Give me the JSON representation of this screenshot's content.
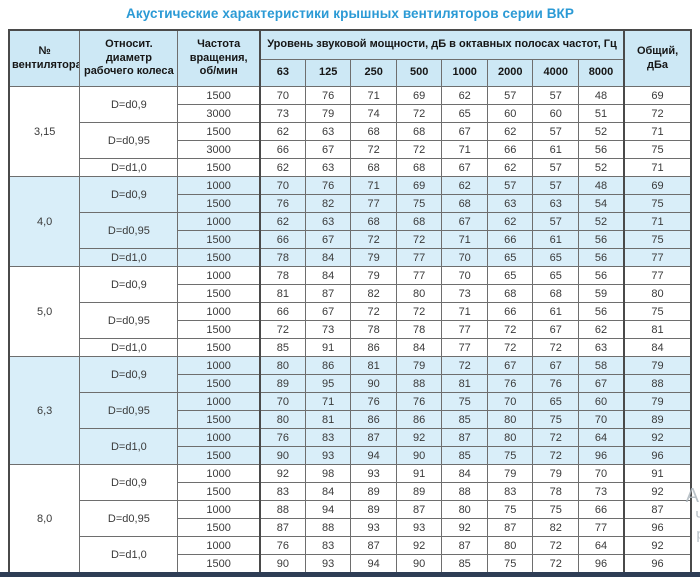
{
  "title": "Акустические характеристики крышных вентиляторов серии ВКР",
  "colors": {
    "title_blue": "#2b9ad5",
    "header_bg": "#cde8f5",
    "band_bg": "#d9eef9",
    "border": "#6e6e6e",
    "outer_border": "#4a4a4a",
    "bottom_bar": "#2e3d55"
  },
  "watermark": {
    "lines": [
      "Ан",
      "Чт",
      "ра"
    ]
  },
  "table": {
    "headers": {
      "fan_no": "№ вентилятора",
      "diameter": "Относит. диаметр рабочего колеса",
      "speed": "Частота вращения, об/мин",
      "spl_group": "Уровень звуковой мощности, дБ в октавных полосах частот, Гц",
      "frequencies": [
        "63",
        "125",
        "250",
        "500",
        "1000",
        "2000",
        "4000",
        "8000"
      ],
      "total": "Общий, дБа"
    },
    "groups": [
      {
        "fan": "3,15",
        "shaded": false,
        "diameters": [
          {
            "label": "D=d0,9",
            "rows": [
              {
                "speed": "1500",
                "values": [
                  70,
                  76,
                  71,
                  69,
                  62,
                  57,
                  57,
                  48
                ],
                "total": 69
              },
              {
                "speed": "3000",
                "values": [
                  73,
                  79,
                  74,
                  72,
                  65,
                  60,
                  60,
                  51
                ],
                "total": 72
              }
            ]
          },
          {
            "label": "D=d0,95",
            "rows": [
              {
                "speed": "1500",
                "values": [
                  62,
                  63,
                  68,
                  68,
                  67,
                  62,
                  57,
                  52
                ],
                "total": 71
              },
              {
                "speed": "3000",
                "values": [
                  66,
                  67,
                  72,
                  72,
                  71,
                  66,
                  61,
                  56
                ],
                "total": 75
              }
            ]
          },
          {
            "label": "D=d1,0",
            "rows": [
              {
                "speed": "1500",
                "values": [
                  62,
                  63,
                  68,
                  68,
                  67,
                  62,
                  57,
                  52
                ],
                "total": 71
              }
            ]
          }
        ]
      },
      {
        "fan": "4,0",
        "shaded": true,
        "diameters": [
          {
            "label": "D=d0,9",
            "rows": [
              {
                "speed": "1000",
                "values": [
                  70,
                  76,
                  71,
                  69,
                  62,
                  57,
                  57,
                  48
                ],
                "total": 69
              },
              {
                "speed": "1500",
                "values": [
                  76,
                  82,
                  77,
                  75,
                  68,
                  63,
                  63,
                  54
                ],
                "total": 75
              }
            ]
          },
          {
            "label": "D=d0,95",
            "rows": [
              {
                "speed": "1000",
                "values": [
                  62,
                  63,
                  68,
                  68,
                  67,
                  62,
                  57,
                  52
                ],
                "total": 71
              },
              {
                "speed": "1500",
                "values": [
                  66,
                  67,
                  72,
                  72,
                  71,
                  66,
                  61,
                  56
                ],
                "total": 75
              }
            ]
          },
          {
            "label": "D=d1,0",
            "rows": [
              {
                "speed": "1500",
                "values": [
                  78,
                  84,
                  79,
                  77,
                  70,
                  65,
                  65,
                  56
                ],
                "total": 77
              }
            ]
          }
        ]
      },
      {
        "fan": "5,0",
        "shaded": false,
        "diameters": [
          {
            "label": "D=d0,9",
            "rows": [
              {
                "speed": "1000",
                "values": [
                  78,
                  84,
                  79,
                  77,
                  70,
                  65,
                  65,
                  56
                ],
                "total": 77
              },
              {
                "speed": "1500",
                "values": [
                  81,
                  87,
                  82,
                  80,
                  73,
                  68,
                  68,
                  59
                ],
                "total": 80
              }
            ]
          },
          {
            "label": "D=d0,95",
            "rows": [
              {
                "speed": "1000",
                "values": [
                  66,
                  67,
                  72,
                  72,
                  71,
                  66,
                  61,
                  56
                ],
                "total": 75
              },
              {
                "speed": "1500",
                "values": [
                  72,
                  73,
                  78,
                  78,
                  77,
                  72,
                  67,
                  62
                ],
                "total": 81
              }
            ]
          },
          {
            "label": "D=d1,0",
            "rows": [
              {
                "speed": "1500",
                "values": [
                  85,
                  91,
                  86,
                  84,
                  77,
                  72,
                  72,
                  63
                ],
                "total": 84
              }
            ]
          }
        ]
      },
      {
        "fan": "6,3",
        "shaded": true,
        "diameters": [
          {
            "label": "D=d0,9",
            "rows": [
              {
                "speed": "1000",
                "values": [
                  80,
                  86,
                  81,
                  79,
                  72,
                  67,
                  67,
                  58
                ],
                "total": 79
              },
              {
                "speed": "1500",
                "values": [
                  89,
                  95,
                  90,
                  88,
                  81,
                  76,
                  76,
                  67
                ],
                "total": 88
              }
            ]
          },
          {
            "label": "D=d0,95",
            "rows": [
              {
                "speed": "1000",
                "values": [
                  70,
                  71,
                  76,
                  76,
                  75,
                  70,
                  65,
                  60
                ],
                "total": 79
              },
              {
                "speed": "1500",
                "values": [
                  80,
                  81,
                  86,
                  86,
                  85,
                  80,
                  75,
                  70
                ],
                "total": 89
              }
            ]
          },
          {
            "label": "D=d1,0",
            "rows": [
              {
                "speed": "1000",
                "values": [
                  76,
                  83,
                  87,
                  92,
                  87,
                  80,
                  72,
                  64
                ],
                "total": 92
              },
              {
                "speed": "1500",
                "values": [
                  90,
                  93,
                  94,
                  90,
                  85,
                  75,
                  72,
                  96
                ],
                "total": 96
              }
            ]
          }
        ]
      },
      {
        "fan": "8,0",
        "shaded": false,
        "diameters": [
          {
            "label": "D=d0,9",
            "rows": [
              {
                "speed": "1000",
                "values": [
                  92,
                  98,
                  93,
                  91,
                  84,
                  79,
                  79,
                  70
                ],
                "total": 91
              },
              {
                "speed": "1500",
                "values": [
                  83,
                  84,
                  89,
                  89,
                  88,
                  83,
                  78,
                  73
                ],
                "total": 92
              }
            ]
          },
          {
            "label": "D=d0,95",
            "rows": [
              {
                "speed": "1000",
                "values": [
                  88,
                  94,
                  89,
                  87,
                  80,
                  75,
                  75,
                  66
                ],
                "total": 87
              },
              {
                "speed": "1500",
                "values": [
                  87,
                  88,
                  93,
                  93,
                  92,
                  87,
                  82,
                  77
                ],
                "total": 96
              }
            ]
          },
          {
            "label": "D=d1,0",
            "rows": [
              {
                "speed": "1000",
                "values": [
                  76,
                  83,
                  87,
                  92,
                  87,
                  80,
                  72,
                  64
                ],
                "total": 92
              },
              {
                "speed": "1500",
                "values": [
                  90,
                  93,
                  94,
                  90,
                  85,
                  75,
                  72,
                  96
                ],
                "total": 96
              }
            ]
          }
        ]
      }
    ]
  }
}
